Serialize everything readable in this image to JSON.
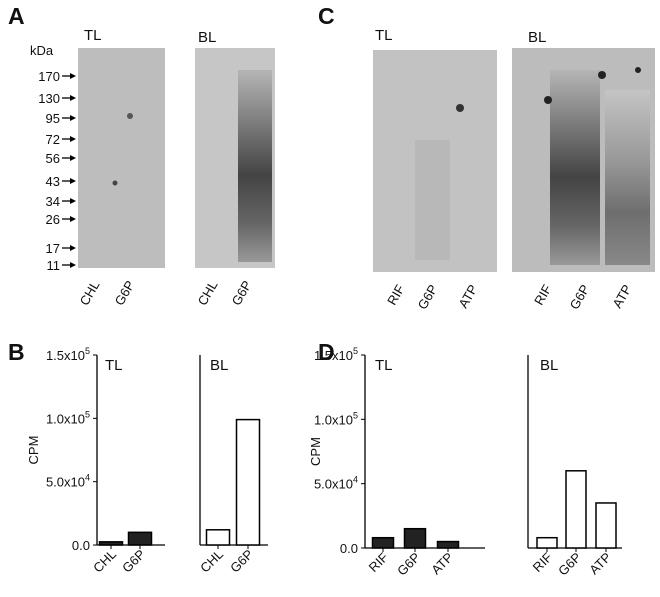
{
  "panel_labels": [
    "A",
    "B",
    "C",
    "D"
  ],
  "gels": {
    "A": {
      "unit": "kDa",
      "markers": [
        170,
        130,
        95,
        72,
        56,
        43,
        34,
        26,
        17,
        11
      ],
      "blots": [
        {
          "title": "TL",
          "lanes": [
            "CHL",
            "G6P"
          ]
        },
        {
          "title": "BL",
          "lanes": [
            "CHL",
            "G6P"
          ]
        }
      ]
    },
    "C": {
      "blots": [
        {
          "title": "TL",
          "lanes": [
            "RIF",
            "G6P",
            "ATP"
          ]
        },
        {
          "title": "BL",
          "lanes": [
            "RIF",
            "G6P",
            "ATP"
          ]
        }
      ]
    }
  },
  "chart_data": [
    {
      "type": "bar",
      "title": "TL",
      "ylabel": "CPM",
      "categories": [
        "CHL",
        "G6P"
      ],
      "values": [
        2500,
        10000
      ],
      "color": "#222222",
      "edgecolor": "#000000",
      "ylim": [
        0,
        150000
      ],
      "yticks": [
        {
          "value": 0,
          "label": "0.0"
        },
        {
          "value": 50000,
          "label": "5.0x10",
          "superscript": "4"
        },
        {
          "value": 100000,
          "label": "1.0x10",
          "superscript": "5"
        },
        {
          "value": 150000,
          "label": "1.5x10",
          "superscript": "5"
        }
      ]
    },
    {
      "type": "bar",
      "title": "BL",
      "categories": [
        "CHL",
        "G6P"
      ],
      "values": [
        12000,
        99000
      ],
      "color": "#ffffff",
      "edgecolor": "#000000",
      "ylim": [
        0,
        150000
      ]
    },
    {
      "type": "bar",
      "title": "TL",
      "ylabel": "CPM",
      "categories": [
        "RIF",
        "G6P",
        "ATP"
      ],
      "values": [
        8000,
        15000,
        5000
      ],
      "color": "#222222",
      "edgecolor": "#000000",
      "ylim": [
        0,
        150000
      ],
      "yticks": [
        {
          "value": 0,
          "label": "0.0"
        },
        {
          "value": 50000,
          "label": "5.0x10",
          "superscript": "4"
        },
        {
          "value": 100000,
          "label": "1.0x10",
          "superscript": "5"
        },
        {
          "value": 150000,
          "label": "1.5x10",
          "superscript": "5"
        }
      ]
    },
    {
      "type": "bar",
      "title": "BL",
      "categories": [
        "RIF",
        "G6P",
        "ATP"
      ],
      "values": [
        8000,
        60000,
        35000
      ],
      "color": "#ffffff",
      "edgecolor": "#000000",
      "ylim": [
        0,
        150000
      ]
    }
  ]
}
